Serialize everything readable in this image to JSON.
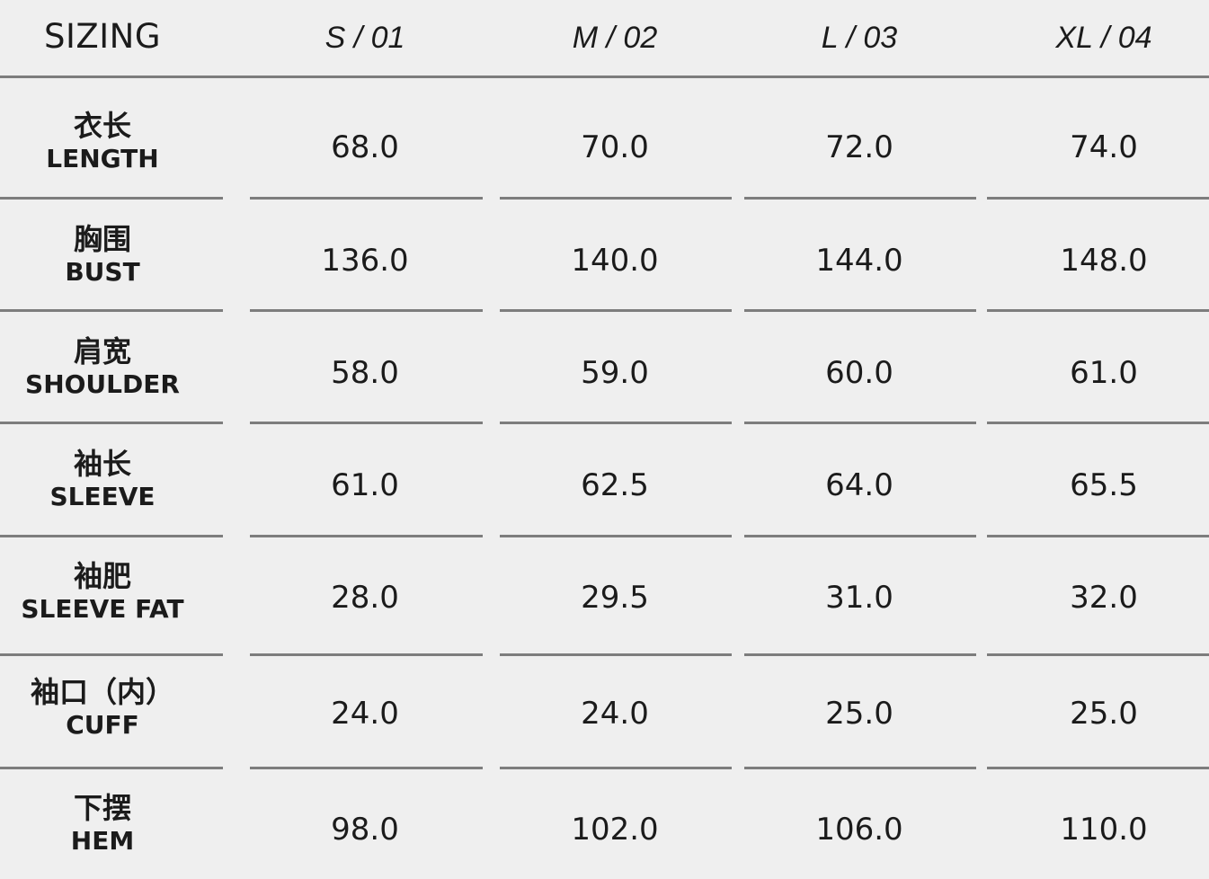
{
  "table": {
    "title": "SIZING",
    "sizes": [
      "S / 01",
      "M / 02",
      "L / 03",
      "XL / 04"
    ],
    "rows": [
      {
        "zh": "衣长",
        "en": "LENGTH",
        "values": [
          "68.0",
          "70.0",
          "72.0",
          "74.0"
        ]
      },
      {
        "zh": "胸围",
        "en": "BUST",
        "values": [
          "136.0",
          "140.0",
          "144.0",
          "148.0"
        ]
      },
      {
        "zh": "肩宽",
        "en": "SHOULDER",
        "values": [
          "58.0",
          "59.0",
          "60.0",
          "61.0"
        ]
      },
      {
        "zh": "袖长",
        "en": "SLEEVE",
        "values": [
          "61.0",
          "62.5",
          "64.0",
          "65.5"
        ]
      },
      {
        "zh": "袖肥",
        "en": "SLEEVE FAT",
        "values": [
          "28.0",
          "29.5",
          "31.0",
          "32.0"
        ]
      },
      {
        "zh": "袖口（内）",
        "en": "CUFF",
        "values": [
          "24.0",
          "24.0",
          "25.0",
          "25.0"
        ]
      },
      {
        "zh": "下摆",
        "en": "HEM",
        "values": [
          "98.0",
          "102.0",
          "106.0",
          "110.0"
        ]
      }
    ]
  }
}
